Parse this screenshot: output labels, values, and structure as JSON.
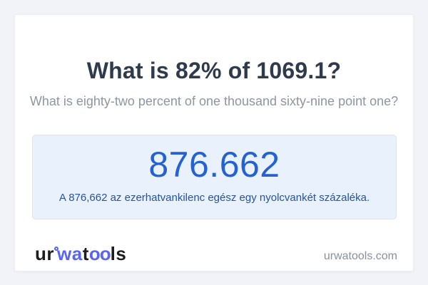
{
  "page": {
    "background_color": "#f2f3f8",
    "title": "What is 82% of 1069.1?",
    "subtitle": "What is eighty-two percent of one thousand sixty-nine point one?"
  },
  "answer": {
    "value": "876.662",
    "sentence": "A 876,662 az ezerhatvankilenc egész egy nyolcvankét százaléka.",
    "value_color": "#2561d2",
    "sentence_color": "#26539f",
    "panel_background": "#e9f2fc",
    "panel_border": "#d5e4f6"
  },
  "footer": {
    "logo": {
      "part_ur": "ur",
      "part_wa": "wa",
      "part_t": "t",
      "part_oo": "oo",
      "part_ls": "ls",
      "accent_color": "#5a64f2",
      "dark_color": "#1d1d1f"
    },
    "domain": "urwatools.com"
  }
}
